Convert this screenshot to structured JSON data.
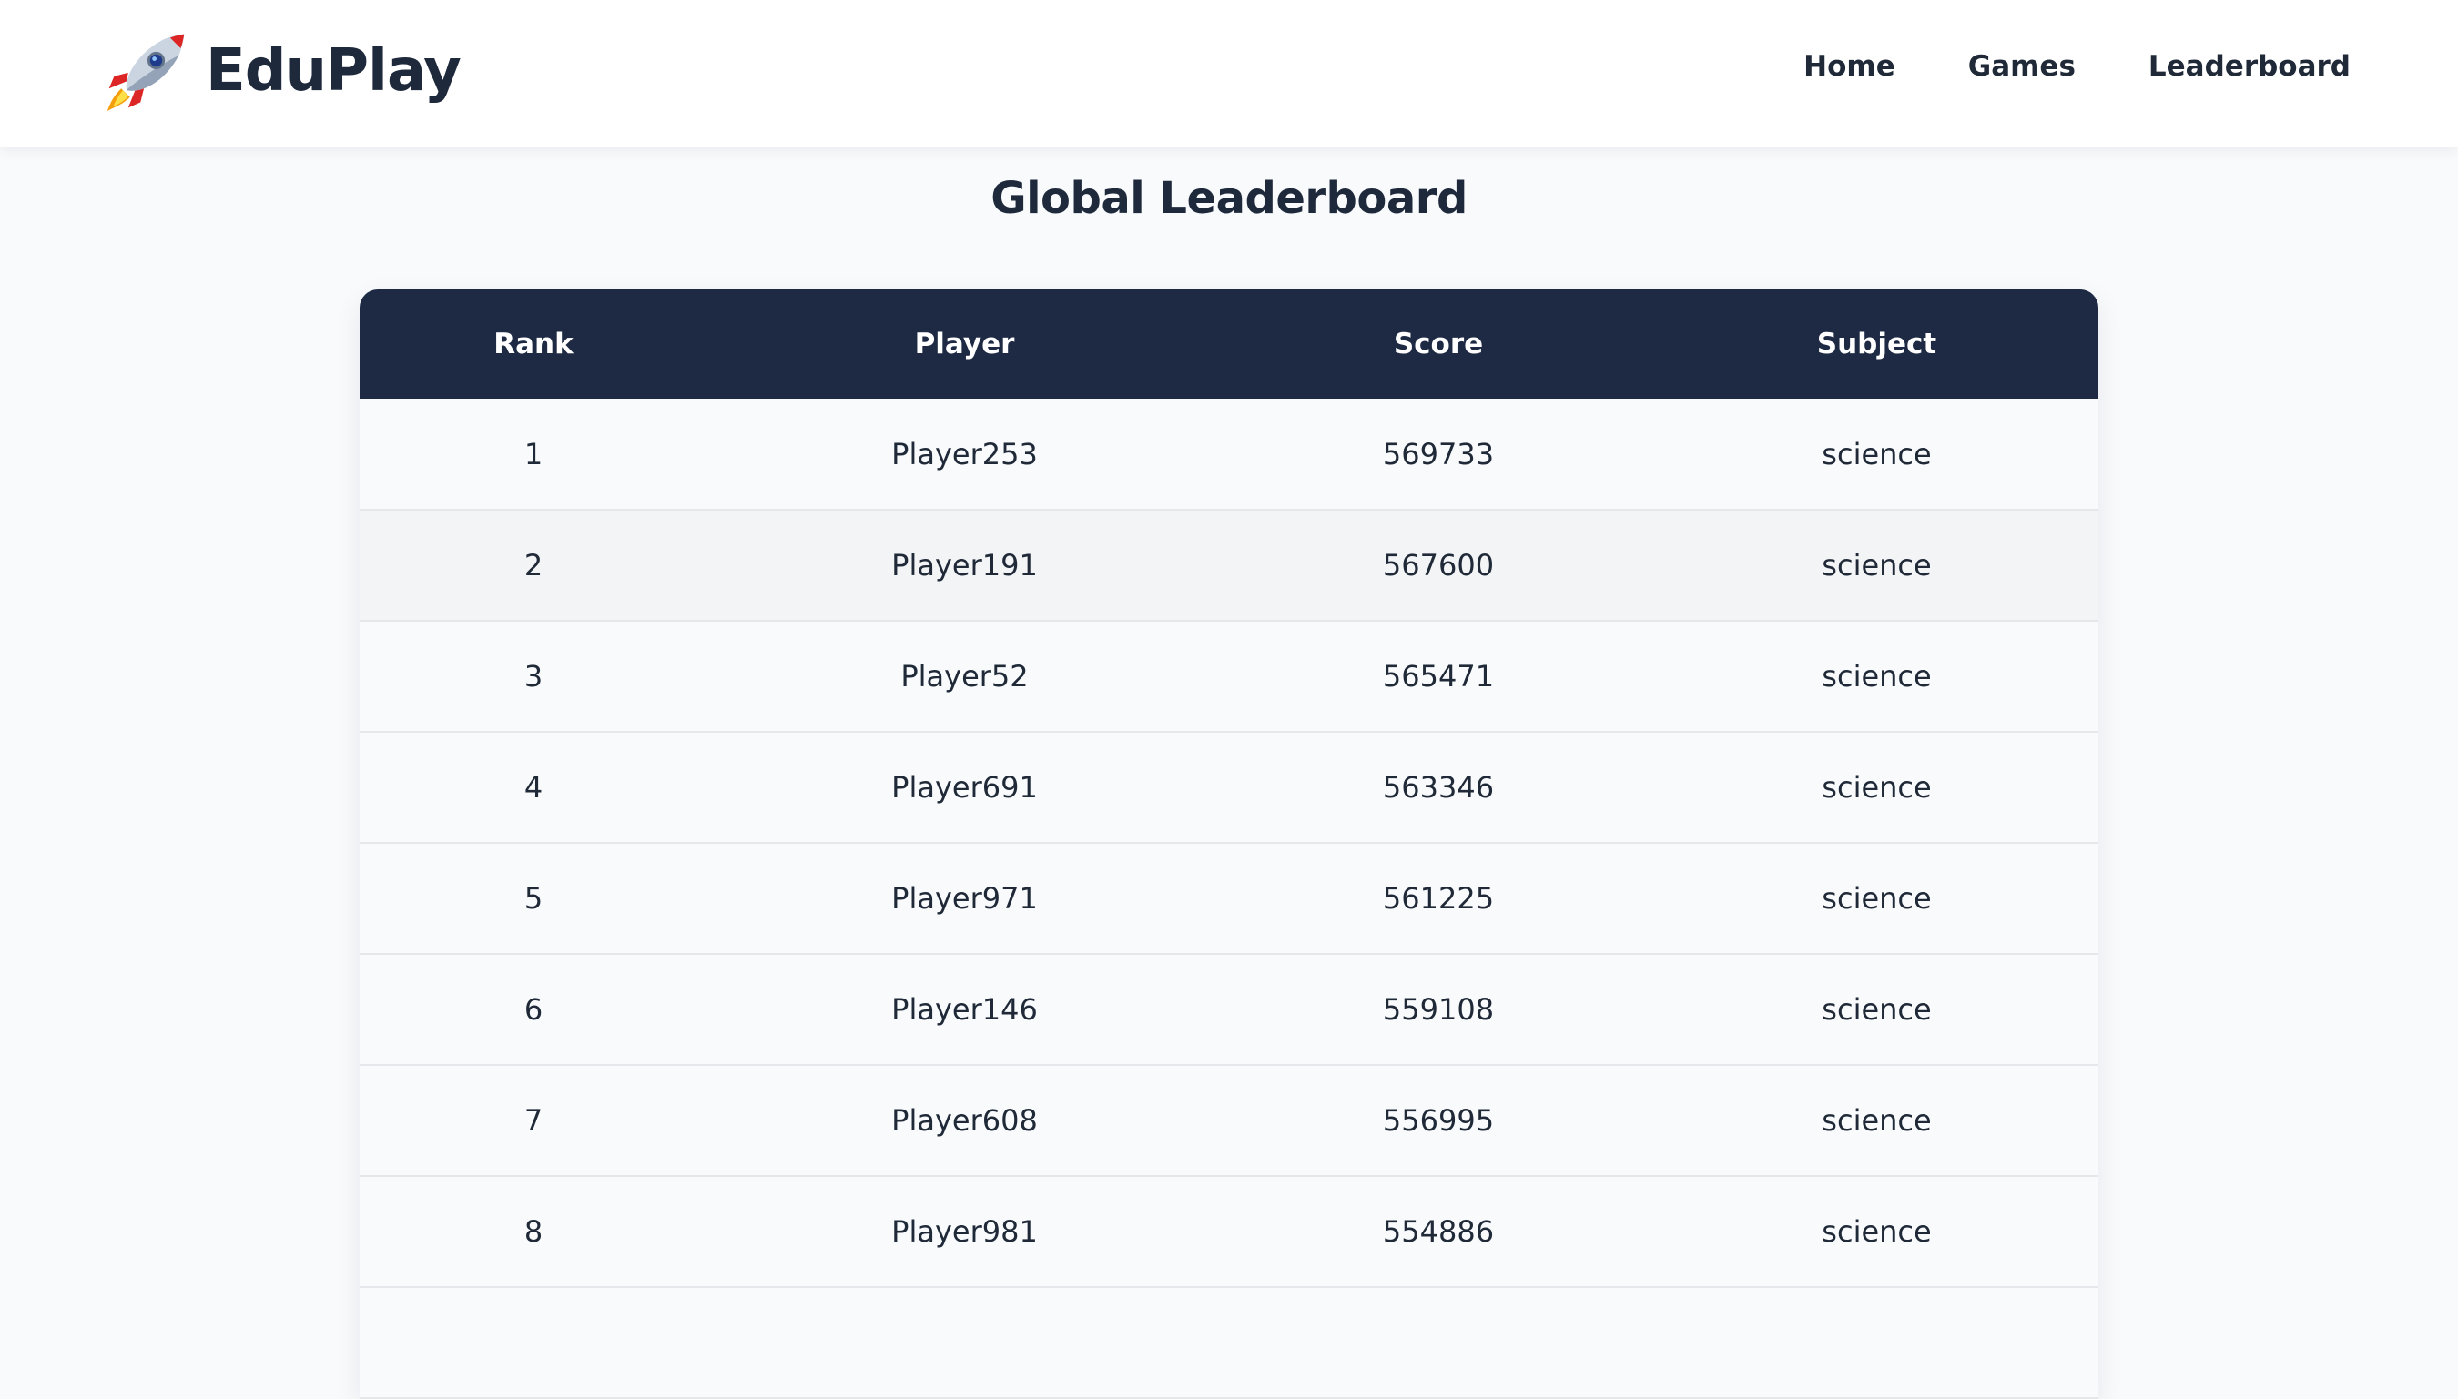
{
  "header": {
    "brand": {
      "icon": "rocket-icon",
      "name": "EduPlay"
    },
    "nav": [
      {
        "label": "Home"
      },
      {
        "label": "Games"
      },
      {
        "label": "Leaderboard"
      }
    ]
  },
  "main": {
    "title": "Global Leaderboard",
    "table": {
      "columns": [
        "Rank",
        "Player",
        "Score",
        "Subject"
      ],
      "rows": [
        {
          "rank": "1",
          "player": "Player253",
          "score": "569733",
          "subject": "science"
        },
        {
          "rank": "2",
          "player": "Player191",
          "score": "567600",
          "subject": "science"
        },
        {
          "rank": "3",
          "player": "Player52",
          "score": "565471",
          "subject": "science"
        },
        {
          "rank": "4",
          "player": "Player691",
          "score": "563346",
          "subject": "science"
        },
        {
          "rank": "5",
          "player": "Player971",
          "score": "561225",
          "subject": "science"
        },
        {
          "rank": "6",
          "player": "Player146",
          "score": "559108",
          "subject": "science"
        },
        {
          "rank": "7",
          "player": "Player608",
          "score": "556995",
          "subject": "science"
        },
        {
          "rank": "8",
          "player": "Player981",
          "score": "554886",
          "subject": "science"
        },
        {
          "rank": "",
          "player": "",
          "score": "",
          "subject": ""
        }
      ]
    }
  },
  "colors": {
    "header_bg": "#ffffff",
    "table_header_bg": "#1e2a44",
    "row_bg": "#f8fafc",
    "row_alt_bg": "#f3f4f6",
    "text": "#1f2937"
  }
}
